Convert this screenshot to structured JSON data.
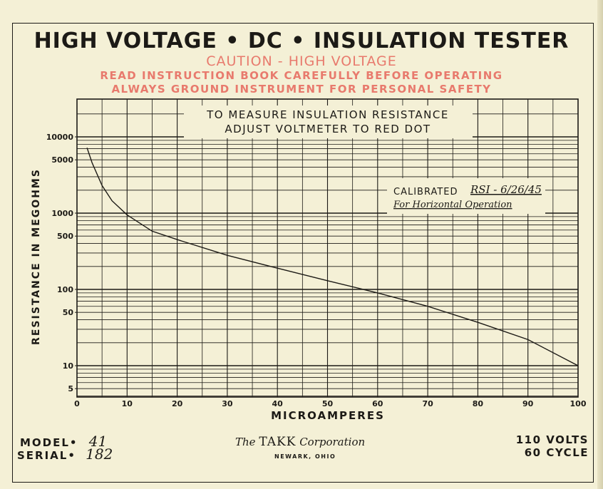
{
  "header": {
    "title": "HIGH VOLTAGE • DC • INSULATION TESTER",
    "caution": "CAUTION - HIGH VOLTAGE",
    "warning_1": "READ INSTRUCTION BOOK CAREFULLY BEFORE OPERATING",
    "warning_2": "ALWAYS GROUND INSTRUMENT FOR PERSONAL SAFETY"
  },
  "chart_data": {
    "type": "line",
    "instruction_1": "TO MEASURE INSULATION RESISTANCE",
    "instruction_2": "ADJUST VOLTMETER TO RED DOT",
    "calibration_label": "CALIBRATED",
    "calibration_handwritten": "RSI - 6/26/45",
    "calibration_note": "For Horizontal Operation",
    "xlabel": "MICROAMPERES",
    "ylabel": "RESISTANCE IN MEGOHMS",
    "x_ticks": [
      "0",
      "10",
      "20",
      "30",
      "40",
      "50",
      "60",
      "70",
      "80",
      "90",
      "100"
    ],
    "y_ticks": [
      "10000",
      "5000",
      "1000",
      "500",
      "100",
      "50",
      "10",
      "5"
    ],
    "xlim": [
      0,
      100
    ],
    "ylim": [
      3,
      20000
    ],
    "y_scale": "log",
    "grid": true,
    "series": [
      {
        "x": [
          2,
          3,
          5,
          7,
          10,
          15,
          20,
          30,
          40,
          50,
          60,
          70,
          80,
          90,
          100
        ],
        "y": [
          7200,
          4600,
          2300,
          1450,
          950,
          580,
          450,
          280,
          190,
          130,
          90,
          60,
          37,
          22,
          10
        ]
      }
    ],
    "colors": {
      "curve": "#1c1a16",
      "grid": "#1c1a16",
      "warning_text": "#e87a6d"
    }
  },
  "footer": {
    "model_label": "MODEL•",
    "model_value": "41",
    "serial_label": "SERIAL•",
    "serial_value": "182",
    "company_prefix": "The",
    "company_name": "TAKK",
    "company_suffix": "Corporation",
    "company_city": "NEWARK, OHIO",
    "volts": "110 VOLTS",
    "cycle": "60 CYCLE"
  }
}
